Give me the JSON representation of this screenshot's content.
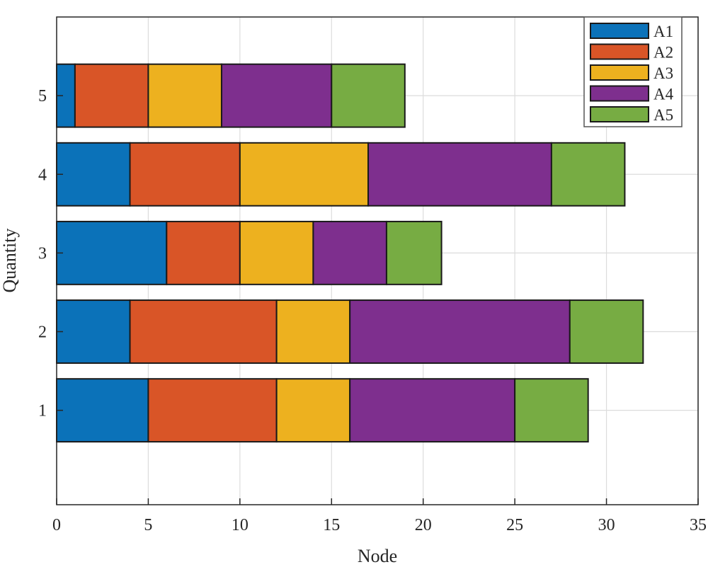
{
  "chart_data": {
    "type": "bar",
    "orientation": "horizontal",
    "stacked": true,
    "categories": [
      "1",
      "2",
      "3",
      "4",
      "5"
    ],
    "series": [
      {
        "name": "A1",
        "color": "#0b72b9",
        "values": [
          5,
          4,
          6,
          4,
          1
        ]
      },
      {
        "name": "A2",
        "color": "#d95527",
        "values": [
          7,
          8,
          4,
          6,
          4
        ]
      },
      {
        "name": "A3",
        "color": "#edb11f",
        "values": [
          4,
          4,
          4,
          7,
          4
        ]
      },
      {
        "name": "A4",
        "color": "#7e2f8e",
        "values": [
          9,
          12,
          4,
          10,
          6
        ]
      },
      {
        "name": "A5",
        "color": "#77ac43",
        "values": [
          4,
          4,
          3,
          4,
          4
        ]
      }
    ],
    "xlabel": "Node",
    "ylabel": "Quantity",
    "xlim": [
      0,
      35
    ],
    "ylim": [
      -0.2,
      6
    ],
    "xticks": [
      "0",
      "5",
      "10",
      "15",
      "20",
      "25",
      "30",
      "35"
    ],
    "yticks": [
      "1",
      "2",
      "3",
      "4",
      "5"
    ],
    "grid": true,
    "legend": "top-right"
  }
}
